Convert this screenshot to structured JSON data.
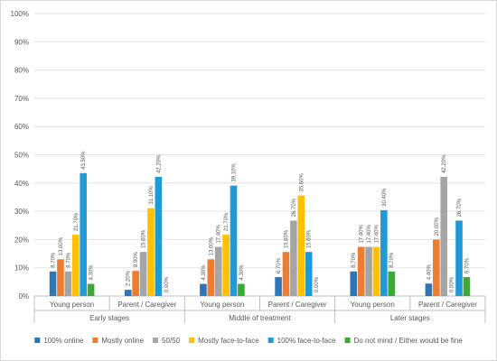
{
  "chart_data": {
    "type": "bar",
    "title": "",
    "xlabel": "",
    "ylabel": "",
    "ylim": [
      0,
      100
    ],
    "y_ticks": [
      "0%",
      "10%",
      "20%",
      "30%",
      "40%",
      "50%",
      "60%",
      "70%",
      "80%",
      "90%",
      "100%"
    ],
    "grid": true,
    "legend_position": "bottom",
    "groups": [
      {
        "label": "Early stages",
        "categories": [
          "Young person",
          "Parent / Caregiver"
        ]
      },
      {
        "label": "Middle of treatment",
        "categories": [
          "Young person",
          "Parent / Caregiver"
        ]
      },
      {
        "label": "Later stages",
        "categories": [
          "Young person",
          "Parent / Caregiver"
        ]
      }
    ],
    "categories": [
      "Young person",
      "Parent / Caregiver",
      "Young person",
      "Parent / Caregiver",
      "Young person",
      "Parent / Caregiver"
    ],
    "series": [
      {
        "name": "100% online",
        "color": "#2e75b6",
        "values": [
          8.7,
          2.2,
          4.3,
          6.7,
          8.7,
          4.4
        ],
        "labels": [
          "8.70%",
          "2.20%",
          "4.30%",
          "6.70%",
          "8.70%",
          "4.40%"
        ]
      },
      {
        "name": "Mostly online",
        "color": "#ed7d31",
        "values": [
          13.0,
          8.9,
          13.0,
          15.6,
          17.4,
          20.0
        ],
        "labels": [
          "13.00%",
          "8.90%",
          "13.00%",
          "15.60%",
          "17.40%",
          "20.00%"
        ]
      },
      {
        "name": "50/50",
        "color": "#a5a5a5",
        "values": [
          8.7,
          15.6,
          17.4,
          26.7,
          17.4,
          42.2
        ],
        "labels": [
          "8.70%",
          "15.60%",
          "17.40%",
          "26.70%",
          "17.40%",
          "42.20%"
        ]
      },
      {
        "name": "Mostly face-to-face",
        "color": "#ffc000",
        "values": [
          21.7,
          31.1,
          21.7,
          35.6,
          17.4,
          0.0
        ],
        "labels": [
          "21.70%",
          "31.10%",
          "21.70%",
          "35.60%",
          "17.40%",
          "0.00%"
        ]
      },
      {
        "name": "100% face-to-face",
        "color": "#1f9ad6",
        "values": [
          43.5,
          42.2,
          39.1,
          15.6,
          30.4,
          26.7
        ],
        "labels": [
          "43.50%",
          "42.20%",
          "39.10%",
          "15.60%",
          "30.40%",
          "26.70%"
        ]
      },
      {
        "name": "Do not mind / Either would be fine",
        "color": "#3aa935",
        "values": [
          4.3,
          0.0,
          4.3,
          0.0,
          8.7,
          6.7
        ],
        "labels": [
          "4.30%",
          "0.00%",
          "4.30%",
          "0.00%",
          "8.70%",
          "6.70%"
        ]
      }
    ]
  }
}
